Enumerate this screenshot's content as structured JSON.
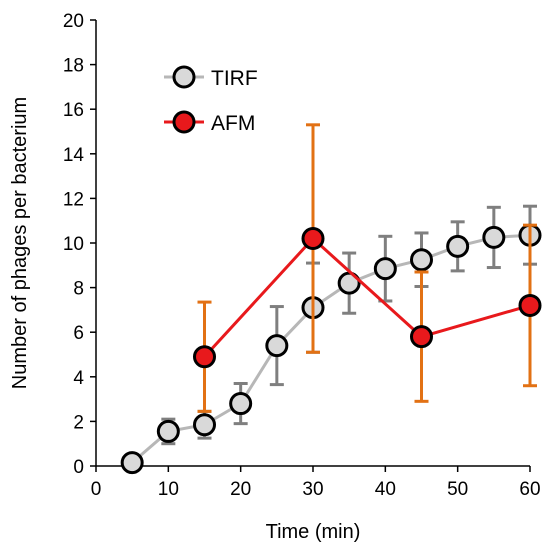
{
  "chart_data": {
    "type": "line",
    "title": "",
    "xlabel": "Time (min)",
    "ylabel": "Number of phages per bacterium",
    "xlim": [
      0,
      60
    ],
    "ylim": [
      0,
      20
    ],
    "xticks": [
      0,
      10,
      20,
      30,
      40,
      50,
      60
    ],
    "yticks": [
      0,
      2,
      4,
      6,
      8,
      10,
      12,
      14,
      16,
      18,
      20
    ],
    "grid": false,
    "legend_position": "top-left",
    "series": [
      {
        "name": "TIRF",
        "line_color": "#b7b7b7",
        "marker_color": "#d9d9d9",
        "error_color": "#7f7f7f",
        "x": [
          5,
          10,
          15,
          20,
          25,
          30,
          35,
          40,
          45,
          50,
          55,
          60
        ],
        "y": [
          0.15,
          1.55,
          1.85,
          2.8,
          5.4,
          7.1,
          8.2,
          8.85,
          9.25,
          9.85,
          10.25,
          10.35
        ],
        "error": [
          0.1,
          0.55,
          0.6,
          0.9,
          1.75,
          2.0,
          1.35,
          1.45,
          1.2,
          1.1,
          1.35,
          1.3
        ]
      },
      {
        "name": "AFM",
        "line_color": "#e8191c",
        "marker_color": "#e8191c",
        "error_color": "#e27114",
        "x": [
          15,
          30,
          45,
          60
        ],
        "y": [
          4.9,
          10.2,
          5.8,
          7.2
        ],
        "error": [
          2.45,
          5.1,
          2.9,
          3.6
        ]
      }
    ]
  }
}
